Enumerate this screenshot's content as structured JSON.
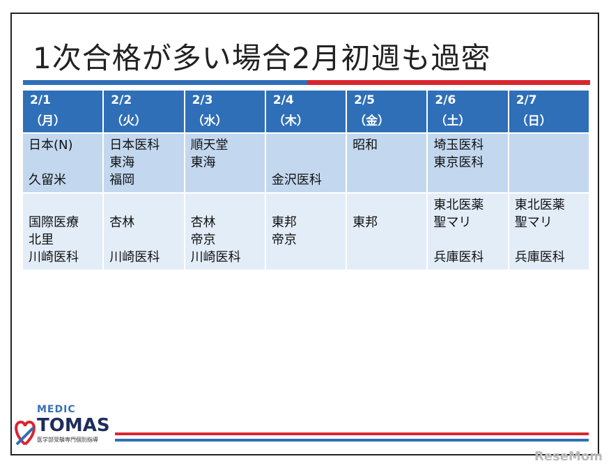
{
  "header": {
    "title": "1次合格が多い場合2月初週も過密"
  },
  "table": {
    "columns": [
      {
        "date": "2/1",
        "weekday": "（月）"
      },
      {
        "date": "2/2",
        "weekday": "（火）"
      },
      {
        "date": "2/3",
        "weekday": "（水）"
      },
      {
        "date": "2/4",
        "weekday": "（木）"
      },
      {
        "date": "2/5",
        "weekday": "（金）"
      },
      {
        "date": "2/6",
        "weekday": "（土）"
      },
      {
        "date": "2/7",
        "weekday": "（日）"
      }
    ],
    "rows": [
      [
        [
          "日本(N)",
          null,
          "久留米"
        ],
        [
          "日本医科",
          "東海",
          "福岡"
        ],
        [
          "順天堂",
          "東海"
        ],
        [
          null,
          null,
          "金沢医科"
        ],
        [
          "昭和"
        ],
        [
          "埼玉医科",
          "東京医科"
        ],
        []
      ],
      [
        [
          null,
          "国際医療",
          "北里",
          "川崎医科"
        ],
        [
          null,
          "杏林",
          null,
          "川崎医科"
        ],
        [
          null,
          "杏林",
          "帝京",
          "川崎医科"
        ],
        [
          null,
          "東邦",
          "帝京"
        ],
        [
          null,
          "東邦"
        ],
        [
          "東北医薬",
          "聖マリ",
          null,
          "兵庫医科"
        ],
        [
          "東北医薬",
          "聖マリ",
          null,
          "兵庫医科"
        ]
      ]
    ]
  },
  "logo": {
    "top": "MEDIC",
    "name": "TOMAS",
    "tagline": "医学部受験専門個別指導"
  },
  "watermark": "ReseMom"
}
